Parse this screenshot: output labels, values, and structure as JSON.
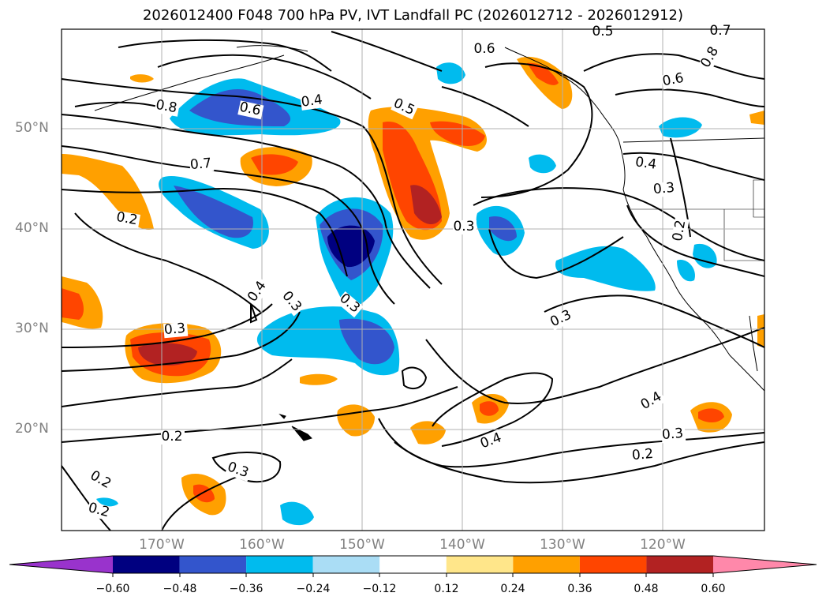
{
  "title": "2026012400 F048 700 hPa PV, IVT Landfall PC (2026012712 - 2026012912)",
  "axes": {
    "lat_ticks": [
      "50°N",
      "40°N",
      "30°N",
      "20°N"
    ],
    "lon_ticks": [
      "170°W",
      "160°W",
      "150°W",
      "140°W",
      "130°W",
      "120°W"
    ]
  },
  "contour_labels": [
    "0.5",
    "0.6",
    "0.7",
    "0.8",
    "0.6",
    "0.4",
    "0.5",
    "0.6",
    "0.8",
    "0.7",
    "0.2",
    "0.4",
    "0.3",
    "0.3",
    "0.3",
    "0.4",
    "0.3",
    "0.2",
    "0.2",
    "0.3",
    "0.2",
    "0.3",
    "0.4",
    "0.4",
    "0.3",
    "0.2",
    "0.3",
    "0.2"
  ],
  "colorbar": {
    "ticks": [
      "−0.60",
      "−0.48",
      "−0.36",
      "−0.24",
      "−0.12",
      "0.12",
      "0.24",
      "0.36",
      "0.48",
      "0.60"
    ],
    "colors": [
      "#9933cc",
      "#000080",
      "#3355cc",
      "#00bbee",
      "#aaddf5",
      "#ffffff",
      "#ffe68a",
      "#ffa000",
      "#ff4500",
      "#b22222",
      "#ff88aa"
    ]
  }
}
